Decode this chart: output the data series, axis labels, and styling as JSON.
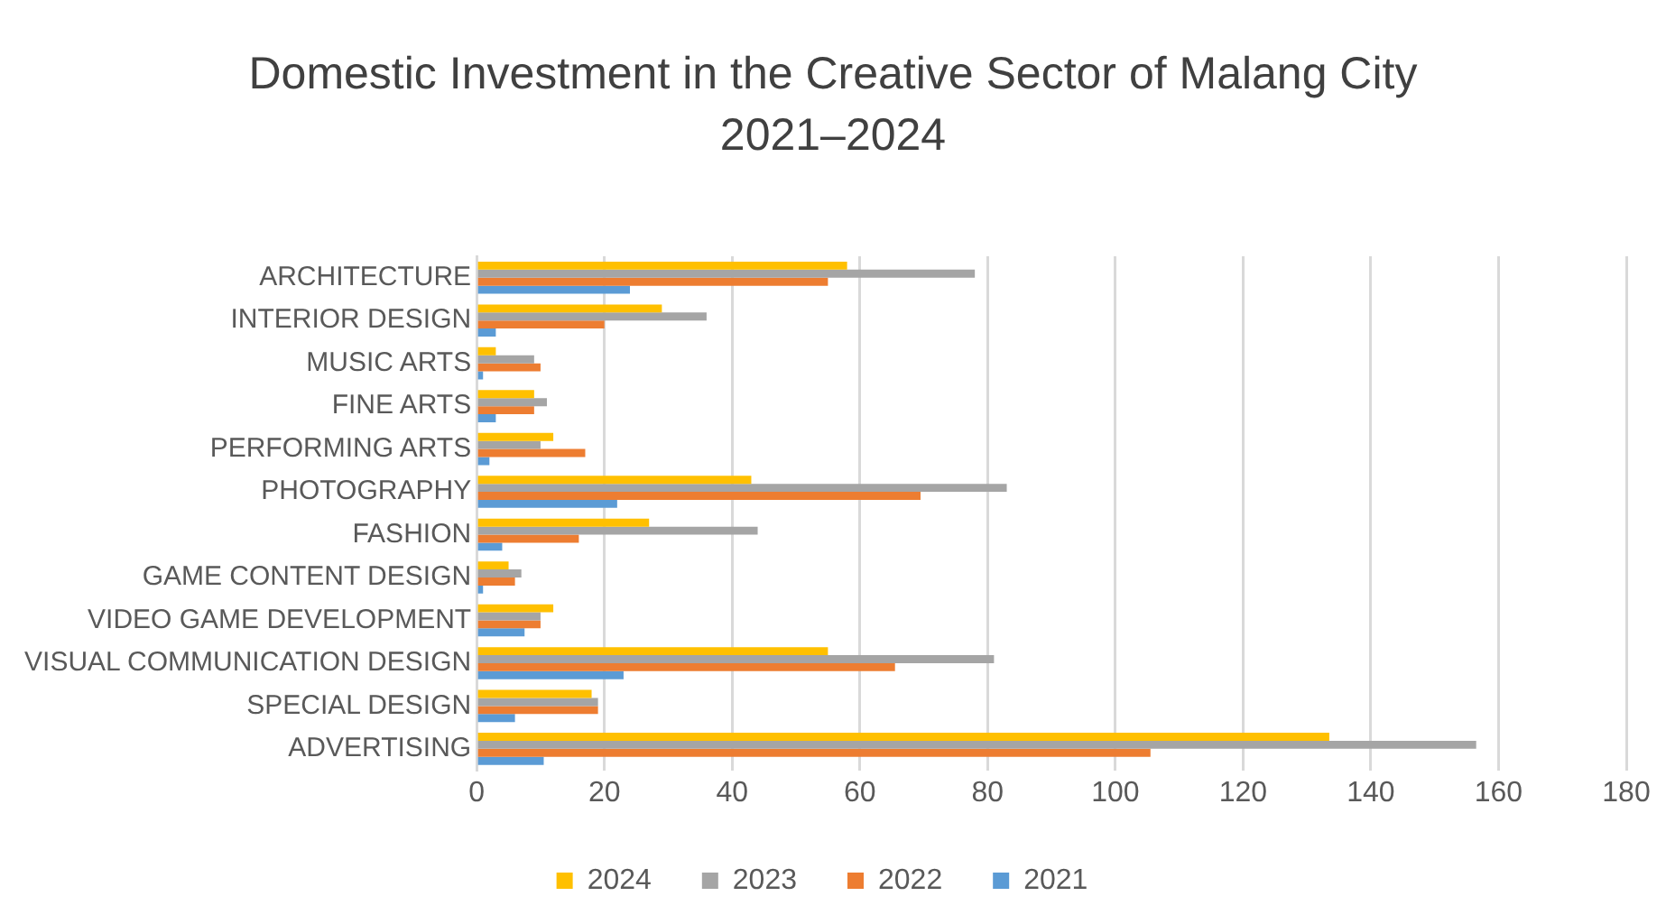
{
  "chart_data": {
    "type": "bar",
    "orientation": "horizontal",
    "title": "Domestic Investment in the Creative Sector of Malang City 2021–2024",
    "categories": [
      "ARCHITECTURE",
      "INTERIOR DESIGN",
      "MUSIC ARTS",
      "FINE ARTS",
      "PERFORMING ARTS",
      "PHOTOGRAPHY",
      "FASHION",
      "GAME CONTENT DESIGN",
      "VIDEO GAME DEVELOPMENT",
      "VISUAL COMMUNICATION DESIGN",
      "SPECIAL DESIGN",
      "ADVERTISING"
    ],
    "series": [
      {
        "name": "2024",
        "color": "#ffc000",
        "values": [
          58,
          29,
          3,
          9,
          12,
          43,
          27,
          5,
          12,
          55,
          18,
          133.5
        ]
      },
      {
        "name": "2023",
        "color": "#a5a5a5",
        "values": [
          78,
          36,
          9,
          11,
          10,
          83,
          44,
          7,
          10,
          81,
          19,
          156.5
        ]
      },
      {
        "name": "2022",
        "color": "#ed7d31",
        "values": [
          55,
          20,
          10,
          9,
          17,
          69.5,
          16,
          6,
          10,
          65.5,
          19,
          105.5
        ]
      },
      {
        "name": "2021",
        "color": "#5b9bd5",
        "values": [
          24,
          3,
          1,
          3,
          2,
          22,
          4,
          1,
          7.5,
          23,
          6,
          10.5
        ]
      }
    ],
    "xlim": [
      0,
      180
    ],
    "xticks": [
      0,
      20,
      40,
      60,
      80,
      100,
      120,
      140,
      160,
      180
    ],
    "grid": "x",
    "legend": "bottom"
  }
}
